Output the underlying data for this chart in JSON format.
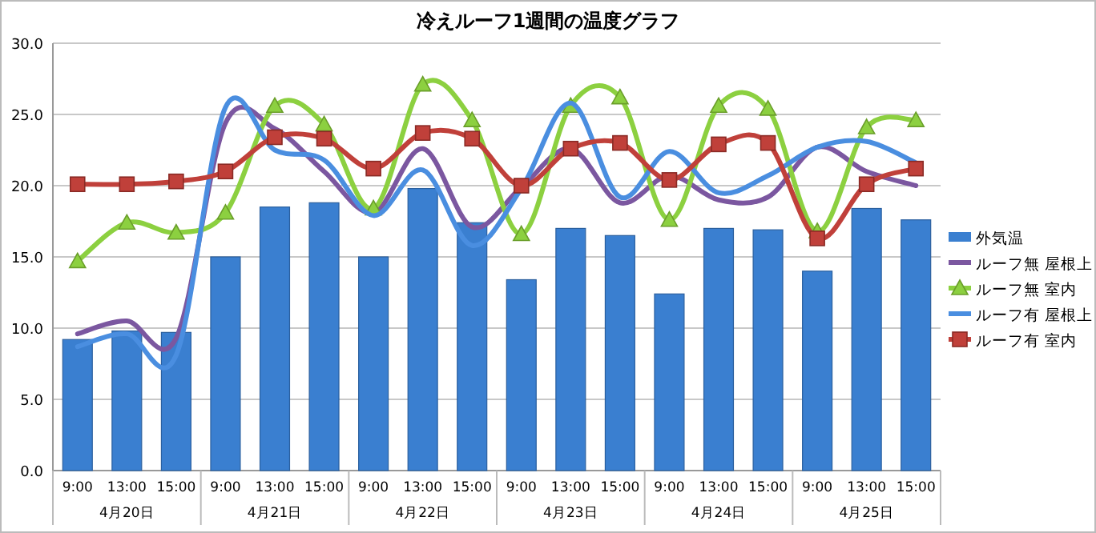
{
  "chart_data": {
    "type": "bar",
    "title": "冷えルーフ1週間の温度グラフ",
    "categories": [
      "9:00",
      "13:00",
      "15:00",
      "9:00",
      "13:00",
      "15:00",
      "9:00",
      "13:00",
      "15:00",
      "9:00",
      "13:00",
      "15:00",
      "9:00",
      "13:00",
      "15:00",
      "9:00",
      "13:00",
      "15:00"
    ],
    "annotations": [
      "4月20日",
      "4月21日",
      "4月22日",
      "4月23日",
      "4月24日",
      "4月25日"
    ],
    "ylim": [
      0,
      30
    ],
    "yticks": [
      {
        "value": 0,
        "label": "0.0"
      },
      {
        "value": 5,
        "label": "5.0"
      },
      {
        "value": 10,
        "label": "10.0"
      },
      {
        "value": 15,
        "label": "15.0"
      },
      {
        "value": 20,
        "label": "20.0"
      },
      {
        "value": 25,
        "label": "25.0"
      },
      {
        "value": 30,
        "label": "30.0"
      }
    ],
    "grid": "y",
    "legend": "right",
    "series": [
      {
        "name": "外気温",
        "color": "#3a7fd0",
        "values": [
          9.2,
          9.8,
          9.7,
          15.0,
          18.5,
          18.8,
          15.0,
          19.8,
          17.4,
          13.4,
          17.0,
          16.5,
          12.4,
          17.0,
          16.9,
          14.0,
          18.4,
          17.6
        ]
      },
      {
        "name": "ルーフ無  屋根上",
        "type": "line",
        "marker": "none",
        "color": "#7b57a0",
        "values": [
          9.6,
          10.5,
          9.3,
          24.4,
          24.0,
          21.0,
          18.1,
          22.6,
          17.1,
          19.9,
          22.6,
          18.8,
          20.7,
          19.0,
          19.2,
          22.7,
          21.0,
          20.0
        ]
      },
      {
        "name": "ルーフ無  室内",
        "type": "line",
        "marker": "triangle",
        "color": "#8cd040",
        "values": [
          14.7,
          17.4,
          16.7,
          18.1,
          25.6,
          24.3,
          18.4,
          27.1,
          24.6,
          16.6,
          25.6,
          26.2,
          17.6,
          25.6,
          25.4,
          16.8,
          24.1,
          24.6
        ]
      },
      {
        "name": "ルーフ有  屋根上",
        "type": "line",
        "marker": "none",
        "color": "#4a8ee0",
        "values": [
          8.7,
          9.6,
          8.1,
          25.5,
          22.5,
          21.8,
          17.9,
          21.1,
          15.8,
          19.8,
          25.8,
          19.2,
          22.4,
          19.5,
          20.7,
          22.7,
          23.1,
          21.6
        ]
      },
      {
        "name": "ルーフ有  室内",
        "type": "line",
        "marker": "square",
        "color": "#c0403a",
        "values": [
          20.1,
          20.1,
          20.3,
          21.0,
          23.4,
          23.3,
          21.2,
          23.7,
          23.3,
          20.0,
          22.6,
          23.0,
          20.4,
          22.9,
          23.0,
          16.3,
          20.1,
          21.2
        ]
      }
    ]
  }
}
